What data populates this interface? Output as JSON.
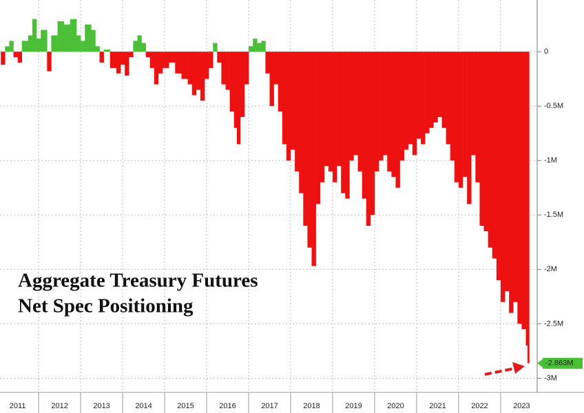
{
  "chart_data": {
    "type": "area",
    "title_lines": [
      "Aggregate Treasury Futures",
      "Net Spec Positioning"
    ],
    "x": [
      2011.1,
      2011.2,
      2011.3,
      2011.4,
      2011.5,
      2011.6,
      2011.75,
      2011.85,
      2011.95,
      2012.05,
      2012.2,
      2012.3,
      2012.45,
      2012.6,
      2012.75,
      2012.9,
      2013.0,
      2013.1,
      2013.25,
      2013.35,
      2013.45,
      2013.55,
      2013.7,
      2013.85,
      2013.95,
      2014.05,
      2014.15,
      2014.25,
      2014.35,
      2014.45,
      2014.55,
      2014.65,
      2014.75,
      2014.85,
      2014.95,
      2015.1,
      2015.25,
      2015.4,
      2015.55,
      2015.65,
      2015.75,
      2015.85,
      2015.95,
      2016.05,
      2016.15,
      2016.25,
      2016.35,
      2016.45,
      2016.55,
      2016.65,
      2016.72,
      2016.8,
      2016.9,
      2017.0,
      2017.1,
      2017.2,
      2017.3,
      2017.4,
      2017.5,
      2017.6,
      2017.7,
      2017.8,
      2017.9,
      2018.0,
      2018.1,
      2018.2,
      2018.3,
      2018.4,
      2018.5,
      2018.6,
      2018.7,
      2018.8,
      2018.9,
      2019.0,
      2019.1,
      2019.2,
      2019.3,
      2019.4,
      2019.5,
      2019.6,
      2019.7,
      2019.8,
      2019.9,
      2020.0,
      2020.1,
      2020.2,
      2020.3,
      2020.4,
      2020.5,
      2020.6,
      2020.7,
      2020.8,
      2020.9,
      2021.0,
      2021.1,
      2021.2,
      2021.3,
      2021.4,
      2021.5,
      2021.6,
      2021.7,
      2021.8,
      2021.9,
      2022.0,
      2022.1,
      2022.2,
      2022.3,
      2022.4,
      2022.5,
      2022.6,
      2022.7,
      2022.8,
      2022.9,
      2023.0,
      2023.1,
      2023.2,
      2023.3,
      2023.4,
      2023.5,
      2023.6,
      2023.64
    ],
    "values": [
      -120000,
      50000,
      100000,
      -50000,
      -100000,
      100000,
      150000,
      300000,
      120000,
      200000,
      -180000,
      150000,
      280000,
      250000,
      300000,
      150000,
      100000,
      250000,
      200000,
      50000,
      -100000,
      20000,
      -150000,
      -200000,
      -120000,
      -220000,
      -50000,
      100000,
      150000,
      80000,
      -50000,
      -150000,
      -300000,
      -200000,
      -150000,
      -100000,
      -200000,
      -250000,
      -300000,
      -400000,
      -350000,
      -450000,
      -250000,
      -150000,
      80000,
      -100000,
      -300000,
      -350000,
      -550000,
      -700000,
      -850000,
      -600000,
      -300000,
      50000,
      120000,
      80000,
      100000,
      -200000,
      -500000,
      -300000,
      -550000,
      -850000,
      -1000000,
      -900000,
      -1100000,
      -1300000,
      -1600000,
      -1800000,
      -1970000,
      -1400000,
      -1200000,
      -1050000,
      -1100000,
      -1200000,
      -1050000,
      -1300000,
      -1350000,
      -1000000,
      -950000,
      -1100000,
      -1350000,
      -1600000,
      -1500000,
      -1100000,
      -1000000,
      -950000,
      -1100000,
      -1150000,
      -1250000,
      -1000000,
      -900000,
      -850000,
      -950000,
      -800000,
      -850000,
      -750000,
      -700000,
      -650000,
      -600000,
      -700000,
      -850000,
      -1000000,
      -1200000,
      -1250000,
      -1150000,
      -1400000,
      -950000,
      -1200000,
      -1600000,
      -1650000,
      -1800000,
      -1900000,
      -2100000,
      -2300000,
      -2200000,
      -2400000,
      -2300000,
      -2500000,
      -2550000,
      -2700000,
      -2863000
    ],
    "last_value_label": "-2.863M",
    "positive_color": "#4cbf38",
    "negative_color": "#ee1111",
    "xlim": [
      2011.08,
      2023.87
    ],
    "xgrid": [
      2012,
      2013,
      2014,
      2015,
      2016,
      2017,
      2018,
      2019,
      2020,
      2021,
      2022,
      2023
    ],
    "xticks": [
      {
        "value": 2011.5,
        "label": "2011"
      },
      {
        "value": 2012.5,
        "label": "2012"
      },
      {
        "value": 2013.5,
        "label": "2013"
      },
      {
        "value": 2014.5,
        "label": "2014"
      },
      {
        "value": 2015.5,
        "label": "2015"
      },
      {
        "value": 2016.5,
        "label": "2016"
      },
      {
        "value": 2017.5,
        "label": "2017"
      },
      {
        "value": 2018.5,
        "label": "2018"
      },
      {
        "value": 2019.5,
        "label": "2019"
      },
      {
        "value": 2020.5,
        "label": "2020"
      },
      {
        "value": 2021.5,
        "label": "2021"
      },
      {
        "value": 2022.5,
        "label": "2022"
      },
      {
        "value": 2023.5,
        "label": "2023"
      }
    ],
    "ylim": [
      -3130000,
      475000
    ],
    "yticks": [
      0,
      {
        "value": -500000,
        "label": "-0.5M"
      },
      {
        "value": -1000000,
        "label": "-1M"
      },
      {
        "value": -1500000,
        "label": "-1.5M"
      },
      {
        "value": -2000000,
        "label": "-2M"
      },
      {
        "value": -2500000,
        "label": "-2.5M"
      },
      {
        "value": -3000000,
        "label": "-3M"
      }
    ],
    "grid": true
  }
}
